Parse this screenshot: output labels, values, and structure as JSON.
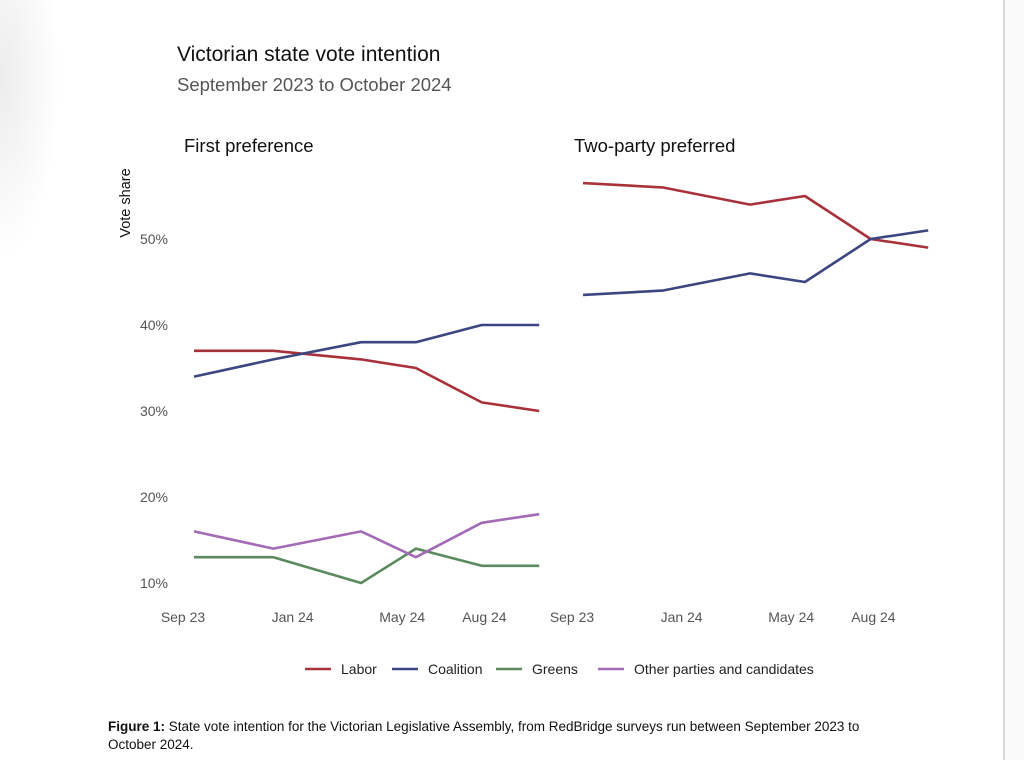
{
  "chart_data": {
    "type": "line",
    "title": "Victorian state vote intention",
    "subtitle": "September 2023 to October 2024",
    "ylabel": "Vote share",
    "ylim": [
      8,
      58
    ],
    "yticks": [
      {
        "value": 10,
        "label": "10%"
      },
      {
        "value": 20,
        "label": "20%"
      },
      {
        "value": 30,
        "label": "30%"
      },
      {
        "value": 40,
        "label": "40%"
      },
      {
        "value": 50,
        "label": "50%"
      }
    ],
    "xticks": [
      {
        "value": 0,
        "label": "Sep 23"
      },
      {
        "value": 4,
        "label": "Jan 24"
      },
      {
        "value": 8,
        "label": "May 24"
      },
      {
        "value": 11,
        "label": "Aug 24"
      }
    ],
    "x_units": "months since Sep 2023",
    "colors": {
      "Labor": "#a9323a",
      "Coalition": "#3c4680",
      "Greens": "#5a8a5e",
      "Other parties and candidates": "#a36bb5"
    },
    "legend": {
      "position": "bottom",
      "entries": [
        "Labor",
        "Coalition",
        "Greens",
        "Other parties and candidates"
      ]
    },
    "grid": false,
    "panels": [
      {
        "title": "First preference",
        "x": [
          0.4,
          3.3,
          6.5,
          8.5,
          10.9,
          13.0
        ],
        "series": [
          {
            "name": "Labor",
            "values": [
              37,
              37,
              36,
              35,
              31,
              30
            ]
          },
          {
            "name": "Coalition",
            "values": [
              34,
              36,
              38,
              38,
              40,
              40
            ]
          },
          {
            "name": "Greens",
            "values": [
              13,
              13,
              10,
              14,
              12,
              12
            ]
          },
          {
            "name": "Other parties and candidates",
            "values": [
              16,
              14,
              16,
              13,
              17,
              18
            ]
          }
        ]
      },
      {
        "title": "Two-party preferred",
        "x": [
          0.4,
          3.3,
          6.5,
          8.5,
          10.9,
          13.0
        ],
        "series": [
          {
            "name": "Labor",
            "values": [
              56.5,
              56,
              54,
              55,
              50,
              49
            ]
          },
          {
            "name": "Coalition",
            "values": [
              43.5,
              44,
              46,
              45,
              50,
              51
            ]
          }
        ]
      }
    ]
  },
  "caption": {
    "label": "Figure 1:",
    "text": "State vote intention for the Victorian Legislative Assembly, from RedBridge surveys run between September 2023 to October 2024."
  }
}
